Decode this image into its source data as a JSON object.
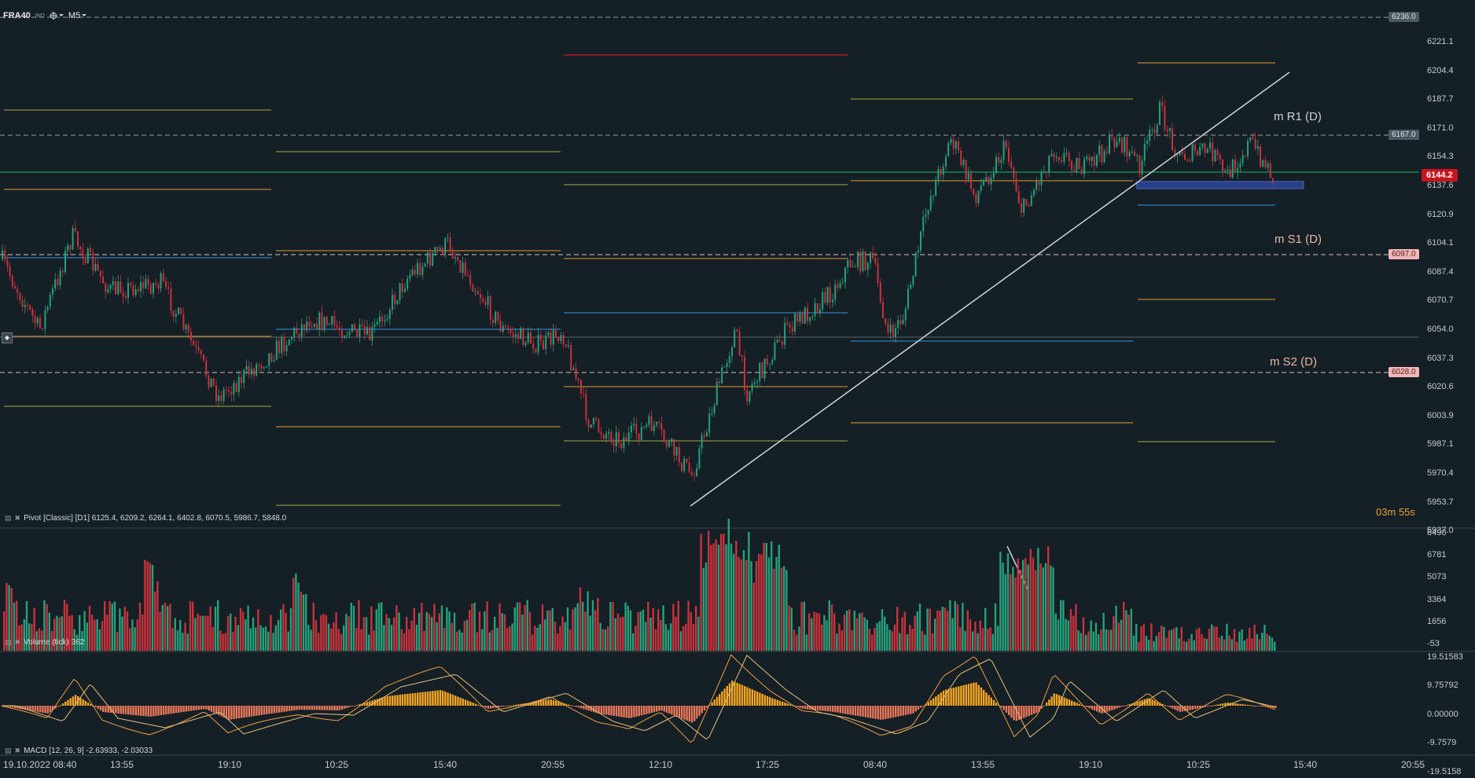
{
  "toolbar": {
    "symbol": "FRA40",
    "badge": "IND",
    "timeframe": "M5"
  },
  "price_axis": [
    "6221.1",
    "6204.4",
    "6187.7",
    "6171.0",
    "6154.3",
    "6137.6",
    "6120.9",
    "6104.1",
    "6087.4",
    "6070.7",
    "6054.0",
    "6037.3",
    "6020.6",
    "6003.9",
    "5987.1",
    "5970.4",
    "5953.7",
    "5937.0"
  ],
  "price_tags": {
    "top": "6236.0",
    "r1": "6167.0",
    "current": "6144.2",
    "s1": "6097.0",
    "s2": "6028.0"
  },
  "levels": {
    "r1": "m R1 (D)",
    "s1": "m S1 (D)",
    "s2": "m S2 (D)"
  },
  "timer": {
    "min": "03",
    "min_unit": "m",
    "sec": "55",
    "sec_unit": "s"
  },
  "pivot_label": "Pivot  [Classic]  [D1]  6125.4,   6209.2,   6264.1,   6402.8,   6070.5,   5986.7,   5848.0",
  "volume_label": "Volume  (tick)  362",
  "volume_axis": [
    "8490",
    "6781",
    "5073",
    "3364",
    "1656",
    "-53"
  ],
  "macd_label": "MACD  [12,  26,  9]  -2.63933,  -2.03033",
  "macd_axis": [
    "19.51583",
    "9.75792",
    "0.00000",
    "-9.7579",
    "-19.5158"
  ],
  "time_axis": [
    "19.10.2022  08:40",
    "13:55",
    "19:10",
    "10:25",
    "15:40",
    "20:55",
    "12:10",
    "17:25",
    "08:40",
    "13:55",
    "19:10",
    "10:25",
    "15:40",
    "20:55"
  ],
  "colors": {
    "background": "#151f26",
    "bull": "#26a17b",
    "bear": "#c8323c",
    "current_price": "#c8141e",
    "r1_line": "#b9b9b9",
    "pivot_line": "#8a8f3a",
    "orange_line": "#b8852f",
    "blue_line": "#2f7fc0",
    "red_line": "#c81e1e",
    "macd_hist_pos": "#f5a623",
    "macd_hist_neg": "#e8785a",
    "timer": "#e8a33a"
  },
  "icons": [
    "crosshair-icon",
    "chevron-down-icon",
    "indicator-settings-icon",
    "close-icon",
    "drag-handle-icon"
  ]
}
